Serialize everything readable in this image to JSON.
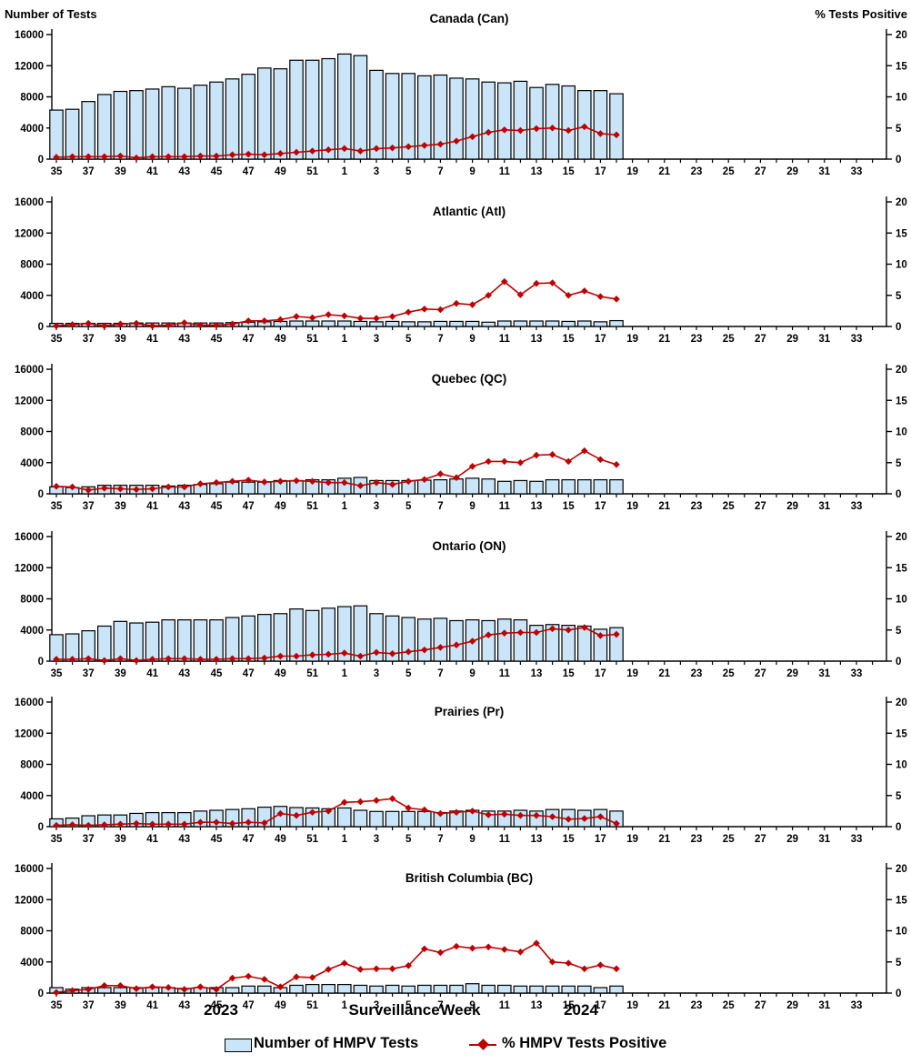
{
  "page": {
    "left_axis_title": "Number of Tests",
    "right_axis_title": "% Tests Positive",
    "x_axis_title": "Surveillance Week",
    "year_left": "2023",
    "year_right": "2024",
    "legend": {
      "bar_label": "Number of HMPV Tests",
      "line_label": "% HMPV Tests Positive"
    }
  },
  "colors": {
    "bar_fill": "#C9E5F7",
    "bar_stroke": "#000000",
    "line": "#C00000",
    "text": "#000000"
  },
  "axes": {
    "x_tick_labels": [
      "35",
      "37",
      "39",
      "41",
      "43",
      "45",
      "47",
      "49",
      "51",
      "1",
      "3",
      "5",
      "7",
      "9",
      "11",
      "13",
      "15",
      "17",
      "19",
      "21",
      "23",
      "25",
      "27",
      "29",
      "31",
      "33"
    ],
    "weeks_total_slots": 52,
    "left_ylim": [
      0,
      16000
    ],
    "left_ticks": [
      0,
      4000,
      8000,
      12000,
      16000
    ],
    "right_ylim": [
      0,
      20
    ],
    "right_ticks": [
      0,
      5,
      10,
      15,
      20
    ],
    "grid": false,
    "legend_position": "bottom"
  },
  "chart_data": [
    {
      "type": "bar",
      "title": "Canada (Can)",
      "x": [
        35,
        36,
        37,
        38,
        39,
        40,
        41,
        42,
        43,
        44,
        45,
        46,
        47,
        48,
        49,
        50,
        51,
        52,
        1,
        2,
        3,
        4,
        5,
        6,
        7,
        8,
        9,
        10,
        11,
        12,
        13,
        14,
        15,
        16,
        17,
        18
      ],
      "series": [
        {
          "name": "Number of HMPV Tests",
          "type": "bar",
          "axis": "left",
          "values": [
            6300,
            6400,
            7400,
            8300,
            8700,
            8800,
            9000,
            9300,
            9100,
            9500,
            9900,
            10300,
            10900,
            11700,
            11600,
            12700,
            12700,
            12900,
            13500,
            13300,
            11400,
            11000,
            11000,
            10700,
            10800,
            10400,
            10300,
            9900,
            9800,
            10000,
            9200,
            9600,
            9400,
            8800,
            8800,
            8400
          ]
        },
        {
          "name": "% HMPV Tests Positive",
          "type": "line",
          "axis": "right",
          "values": [
            0.3,
            0.4,
            0.4,
            0.4,
            0.5,
            0.2,
            0.4,
            0.4,
            0.4,
            0.5,
            0.5,
            0.7,
            0.8,
            0.7,
            0.9,
            1.1,
            1.3,
            1.5,
            1.7,
            1.3,
            1.7,
            1.8,
            2.0,
            2.2,
            2.4,
            2.9,
            3.6,
            4.3,
            4.7,
            4.6,
            4.9,
            5.0,
            4.6,
            5.2,
            4.1,
            3.9
          ]
        }
      ]
    },
    {
      "type": "bar",
      "title": "Atlantic (Atl)",
      "x": [
        35,
        36,
        37,
        38,
        39,
        40,
        41,
        42,
        43,
        44,
        45,
        46,
        47,
        48,
        49,
        50,
        51,
        52,
        1,
        2,
        3,
        4,
        5,
        6,
        7,
        8,
        9,
        10,
        11,
        12,
        13,
        14,
        15,
        16,
        17,
        18
      ],
      "series": [
        {
          "name": "Number of HMPV Tests",
          "type": "bar",
          "axis": "left",
          "values": [
            400,
            400,
            400,
            400,
            400,
            450,
            450,
            450,
            450,
            450,
            450,
            500,
            550,
            600,
            650,
            700,
            700,
            700,
            700,
            650,
            600,
            650,
            600,
            600,
            650,
            650,
            650,
            550,
            700,
            700,
            700,
            700,
            650,
            700,
            600,
            750
          ]
        },
        {
          "name": "% HMPV Tests Positive",
          "type": "line",
          "axis": "right",
          "values": [
            0.1,
            0.3,
            0.5,
            0.1,
            0.4,
            0.5,
            0.1,
            0.2,
            0.6,
            0.2,
            0.2,
            0.4,
            0.9,
            0.9,
            1.1,
            1.6,
            1.4,
            1.9,
            1.7,
            1.3,
            1.3,
            1.6,
            2.3,
            2.8,
            2.7,
            3.7,
            3.5,
            5.0,
            7.2,
            5.1,
            6.9,
            7.0,
            5.0,
            5.7,
            4.8,
            4.4
          ]
        }
      ]
    },
    {
      "type": "bar",
      "title": "Quebec (QC)",
      "x": [
        35,
        36,
        37,
        38,
        39,
        40,
        41,
        42,
        43,
        44,
        45,
        46,
        47,
        48,
        49,
        50,
        51,
        52,
        1,
        2,
        3,
        4,
        5,
        6,
        7,
        8,
        9,
        10,
        11,
        12,
        13,
        14,
        15,
        16,
        17,
        18
      ],
      "series": [
        {
          "name": "Number of HMPV Tests",
          "type": "bar",
          "axis": "left",
          "values": [
            900,
            800,
            900,
            1100,
            1100,
            1100,
            1100,
            1000,
            1100,
            1200,
            1300,
            1500,
            1500,
            1500,
            1700,
            1700,
            1800,
            1800,
            2000,
            2100,
            1700,
            1700,
            1700,
            1750,
            1800,
            1900,
            2000,
            1900,
            1600,
            1700,
            1600,
            1800,
            1800,
            1800,
            1800,
            1800
          ]
        },
        {
          "name": "% HMPV Tests Positive",
          "type": "line",
          "axis": "right",
          "values": [
            1.2,
            1.1,
            0.6,
            0.9,
            0.8,
            0.7,
            0.8,
            1.1,
            1.1,
            1.6,
            1.8,
            2.0,
            2.2,
            1.9,
            2.0,
            2.1,
            2.0,
            1.8,
            1.8,
            1.3,
            1.8,
            1.5,
            2.0,
            2.3,
            3.2,
            2.6,
            4.4,
            5.2,
            5.2,
            5.0,
            6.2,
            6.3,
            5.2,
            6.9,
            5.5,
            4.7
          ]
        }
      ]
    },
    {
      "type": "bar",
      "title": "Ontario (ON)",
      "x": [
        35,
        36,
        37,
        38,
        39,
        40,
        41,
        42,
        43,
        44,
        45,
        46,
        47,
        48,
        49,
        50,
        51,
        52,
        1,
        2,
        3,
        4,
        5,
        6,
        7,
        8,
        9,
        10,
        11,
        12,
        13,
        14,
        15,
        16,
        17,
        18
      ],
      "series": [
        {
          "name": "Number of HMPV Tests",
          "type": "bar",
          "axis": "left",
          "values": [
            3400,
            3500,
            3900,
            4500,
            5100,
            4900,
            5000,
            5300,
            5300,
            5300,
            5300,
            5600,
            5800,
            6000,
            6100,
            6700,
            6500,
            6800,
            7000,
            7100,
            6100,
            5800,
            5600,
            5400,
            5500,
            5200,
            5300,
            5200,
            5400,
            5300,
            4600,
            4700,
            4600,
            4500,
            4100,
            4300
          ]
        },
        {
          "name": "% HMPV Tests Positive",
          "type": "line",
          "axis": "right",
          "values": [
            0.3,
            0.3,
            0.4,
            0.1,
            0.4,
            0.1,
            0.3,
            0.4,
            0.4,
            0.3,
            0.3,
            0.4,
            0.4,
            0.5,
            0.8,
            0.8,
            1.0,
            1.1,
            1.3,
            0.8,
            1.4,
            1.2,
            1.5,
            1.8,
            2.2,
            2.6,
            3.2,
            4.2,
            4.5,
            4.6,
            4.6,
            5.2,
            5.0,
            5.4,
            4.1,
            4.3
          ]
        }
      ]
    },
    {
      "type": "bar",
      "title": "Prairies (Pr)",
      "x": [
        35,
        36,
        37,
        38,
        39,
        40,
        41,
        42,
        43,
        44,
        45,
        46,
        47,
        48,
        49,
        50,
        51,
        52,
        1,
        2,
        3,
        4,
        5,
        6,
        7,
        8,
        9,
        10,
        11,
        12,
        13,
        14,
        15,
        16,
        17,
        18
      ],
      "series": [
        {
          "name": "Number of HMPV Tests",
          "type": "bar",
          "axis": "left",
          "values": [
            1000,
            1100,
            1400,
            1500,
            1500,
            1700,
            1800,
            1800,
            1800,
            2000,
            2100,
            2200,
            2300,
            2500,
            2600,
            2450,
            2400,
            2300,
            2400,
            2100,
            1950,
            1950,
            1950,
            1950,
            1800,
            2000,
            2100,
            2000,
            2000,
            2100,
            2000,
            2200,
            2200,
            2100,
            2200,
            2000
          ]
        },
        {
          "name": "% HMPV Tests Positive",
          "type": "line",
          "axis": "right",
          "values": [
            0.2,
            0.3,
            0.2,
            0.3,
            0.4,
            0.5,
            0.4,
            0.4,
            0.4,
            0.7,
            0.7,
            0.5,
            0.7,
            0.6,
            2.1,
            1.8,
            2.3,
            2.5,
            3.9,
            4.0,
            4.2,
            4.5,
            3.0,
            2.7,
            2.1,
            2.3,
            2.5,
            1.9,
            2.0,
            1.8,
            1.8,
            1.6,
            1.2,
            1.3,
            1.6,
            0.5
          ]
        }
      ]
    },
    {
      "type": "bar",
      "title": "British Columbia (BC)",
      "x": [
        35,
        36,
        37,
        38,
        39,
        40,
        41,
        42,
        43,
        44,
        45,
        46,
        47,
        48,
        49,
        50,
        51,
        52,
        1,
        2,
        3,
        4,
        5,
        6,
        7,
        8,
        9,
        10,
        11,
        12,
        13,
        14,
        15,
        16,
        17,
        18
      ],
      "series": [
        {
          "name": "Number of HMPV Tests",
          "type": "bar",
          "axis": "left",
          "values": [
            700,
            500,
            700,
            700,
            700,
            700,
            700,
            700,
            600,
            700,
            700,
            700,
            900,
            900,
            700,
            1000,
            1100,
            1100,
            1100,
            1000,
            900,
            1000,
            900,
            1000,
            1000,
            1000,
            1200,
            1000,
            1000,
            900,
            900,
            900,
            900,
            900,
            700,
            900
          ]
        },
        {
          "name": "% HMPV Tests Positive",
          "type": "line",
          "axis": "right",
          "values": [
            0.1,
            0.4,
            0.6,
            1.2,
            1.2,
            0.7,
            1.0,
            0.9,
            0.6,
            1.0,
            0.6,
            2.4,
            2.7,
            2.2,
            1.0,
            2.6,
            2.5,
            3.8,
            4.8,
            3.8,
            3.9,
            3.9,
            4.4,
            7.1,
            6.5,
            7.5,
            7.2,
            7.4,
            7.0,
            6.6,
            8.0,
            5.0,
            4.8,
            3.9,
            4.5,
            3.9
          ]
        }
      ]
    }
  ]
}
